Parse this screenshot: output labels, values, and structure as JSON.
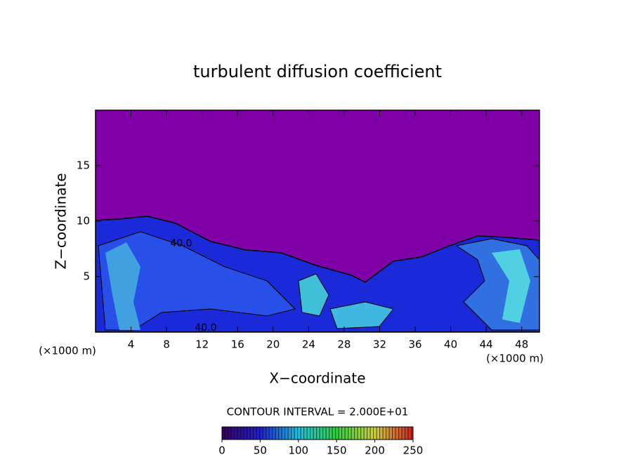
{
  "chart_data": {
    "type": "contour",
    "title": "turbulent diffusion coefficient",
    "x_label": "X−coordinate",
    "y_label": "Z−coordinate",
    "x_unit": "(×1000 m)",
    "contour_interval": "CONTOUR INTERVAL = 2.000E+01",
    "contour_labels": [
      "40.0",
      "40.0"
    ],
    "xlim": [
      0,
      50
    ],
    "ylim": [
      0,
      20
    ],
    "xticks": [
      4,
      8,
      12,
      16,
      20,
      24,
      28,
      32,
      36,
      40,
      44,
      48
    ],
    "yticks": [
      5,
      10,
      15
    ],
    "colorbar": {
      "lim": [
        0,
        250
      ],
      "ticks": [
        0,
        50,
        100,
        150,
        200,
        250
      ]
    }
  }
}
